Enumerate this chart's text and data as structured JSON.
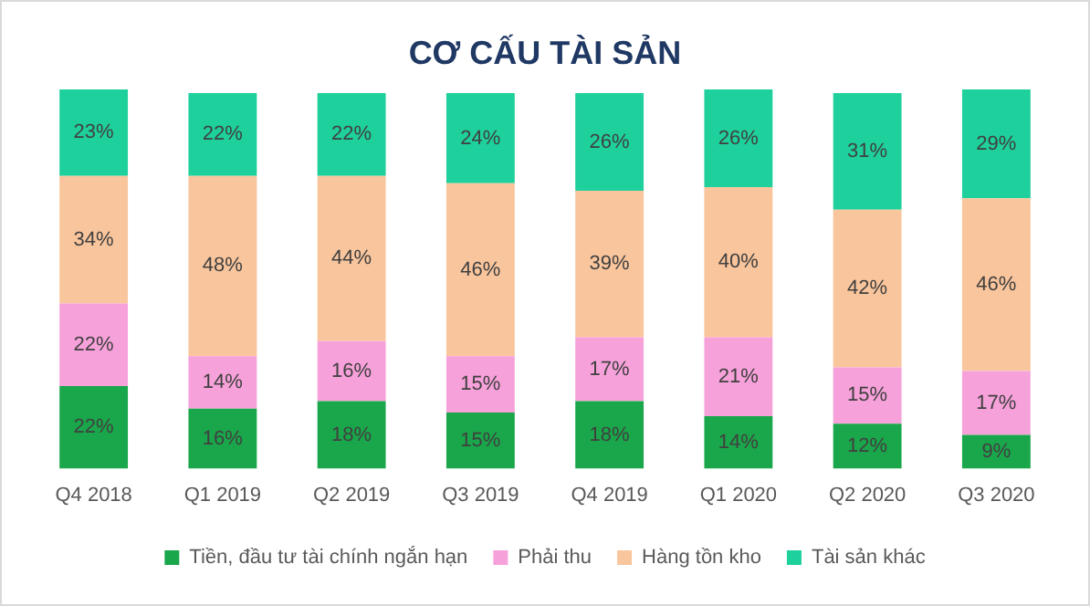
{
  "chart_data": {
    "type": "bar",
    "title": "CƠ CẤU TÀI SẢN",
    "stacked": true,
    "legend": "bottom",
    "grid": false,
    "tick_labels": "x",
    "categories": [
      "Q4 2018",
      "Q1 2019",
      "Q2 2019",
      "Q3 2019",
      "Q4 2019",
      "Q1 2020",
      "Q2 2020",
      "Q3 2020"
    ],
    "series": [
      {
        "name": "Tiền, đầu tư tài chính ngắn hạn",
        "color": "#1aa64a",
        "values": [
          22,
          16,
          18,
          15,
          18,
          14,
          12,
          9
        ],
        "value_labels": [
          "22%",
          "16%",
          "18%",
          "15%",
          "18%",
          "14%",
          "12%",
          "9%"
        ]
      },
      {
        "name": "Phải thu",
        "color": "#f7a1da",
        "values": [
          22,
          14,
          16,
          15,
          17,
          21,
          15,
          17
        ],
        "value_labels": [
          "22%",
          "14%",
          "16%",
          "15%",
          "17%",
          "21%",
          "15%",
          "17%"
        ]
      },
      {
        "name": "Hàng tồn kho",
        "color": "#f9c59c",
        "values": [
          34,
          48,
          44,
          46,
          39,
          40,
          42,
          46
        ],
        "value_labels": [
          "34%",
          "48%",
          "44%",
          "46%",
          "39%",
          "40%",
          "42%",
          "46%"
        ]
      },
      {
        "name": "Tài sản khác",
        "color": "#1ed09c",
        "values": [
          23,
          22,
          22,
          24,
          26,
          26,
          31,
          29
        ],
        "value_labels": [
          "23%",
          "22%",
          "22%",
          "24%",
          "26%",
          "26%",
          "31%",
          "29%"
        ]
      }
    ]
  }
}
